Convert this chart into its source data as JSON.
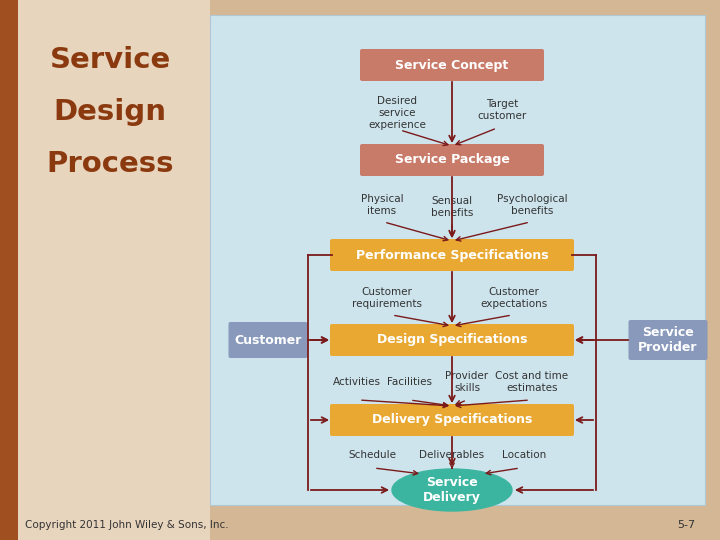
{
  "bg_color": "#d4b896",
  "left_panel_color": "#e8d5be",
  "diagram_bg": "#cde4ed",
  "title_lines": [
    "Service",
    "Design",
    "Process"
  ],
  "title_color": "#8b3a0f",
  "copyright": "Copyright 2011 John Wiley & Sons, Inc.",
  "page": "5-7",
  "arrow_color": "#7a1a1a",
  "arrow_lw": 1.3
}
